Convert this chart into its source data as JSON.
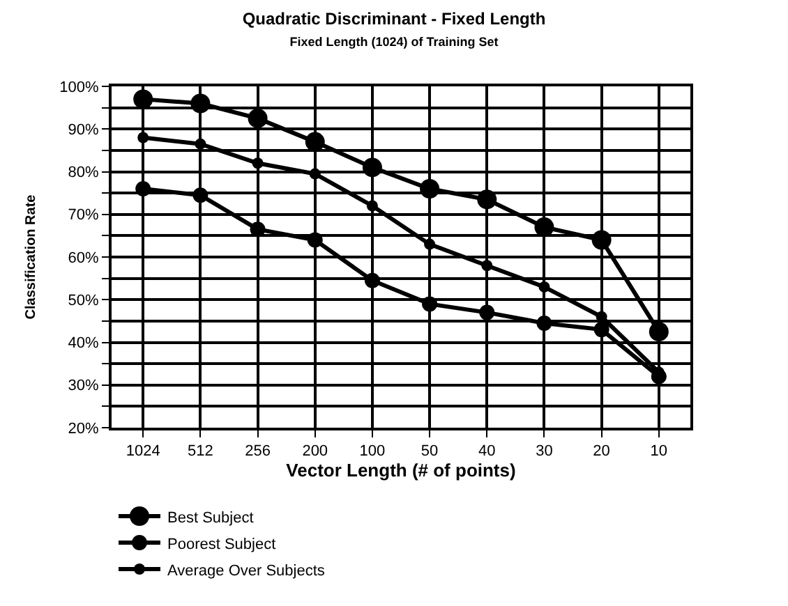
{
  "chart_data": {
    "type": "line",
    "title": "Quadratic Discriminant - Fixed Length",
    "subtitle": "Fixed Length (1024) of Training Set",
    "xlabel": "Vector Length (# of points)",
    "ylabel": "Classification Rate",
    "categories": [
      "1024",
      "512",
      "256",
      "200",
      "100",
      "50",
      "40",
      "30",
      "20",
      "10"
    ],
    "series": [
      {
        "name": "Best Subject",
        "color": "#000000",
        "values": [
          97,
          96,
          92.5,
          87,
          81,
          76,
          73.5,
          67,
          64,
          42.5
        ]
      },
      {
        "name": "Poorest Subject",
        "color": "#000000",
        "values": [
          76,
          74.5,
          66.5,
          64,
          54.5,
          49,
          47,
          44.5,
          43,
          32
        ]
      },
      {
        "name": "Average Over Subjects",
        "color": "#000000",
        "values": [
          88,
          86.5,
          82,
          79.5,
          72,
          63,
          58,
          53,
          46,
          33
        ]
      }
    ],
    "ylim": [
      20,
      100
    ],
    "yticks": [
      {
        "value": 20,
        "label": "20%"
      },
      {
        "value": 25,
        "label": null
      },
      {
        "value": 30,
        "label": "30%"
      },
      {
        "value": 35,
        "label": null
      },
      {
        "value": 40,
        "label": "40%"
      },
      {
        "value": 45,
        "label": null
      },
      {
        "value": 50,
        "label": "50%"
      },
      {
        "value": 55,
        "label": null
      },
      {
        "value": 60,
        "label": "60%"
      },
      {
        "value": 65,
        "label": null
      },
      {
        "value": 70,
        "label": "70%"
      },
      {
        "value": 75,
        "label": null
      },
      {
        "value": 80,
        "label": "80%"
      },
      {
        "value": 85,
        "label": null
      },
      {
        "value": 90,
        "label": "90%"
      },
      {
        "value": 95,
        "label": null
      },
      {
        "value": 100,
        "label": "100%"
      }
    ],
    "grid": true,
    "legend": "bottom",
    "marker": "circle",
    "line_style": "solid"
  }
}
